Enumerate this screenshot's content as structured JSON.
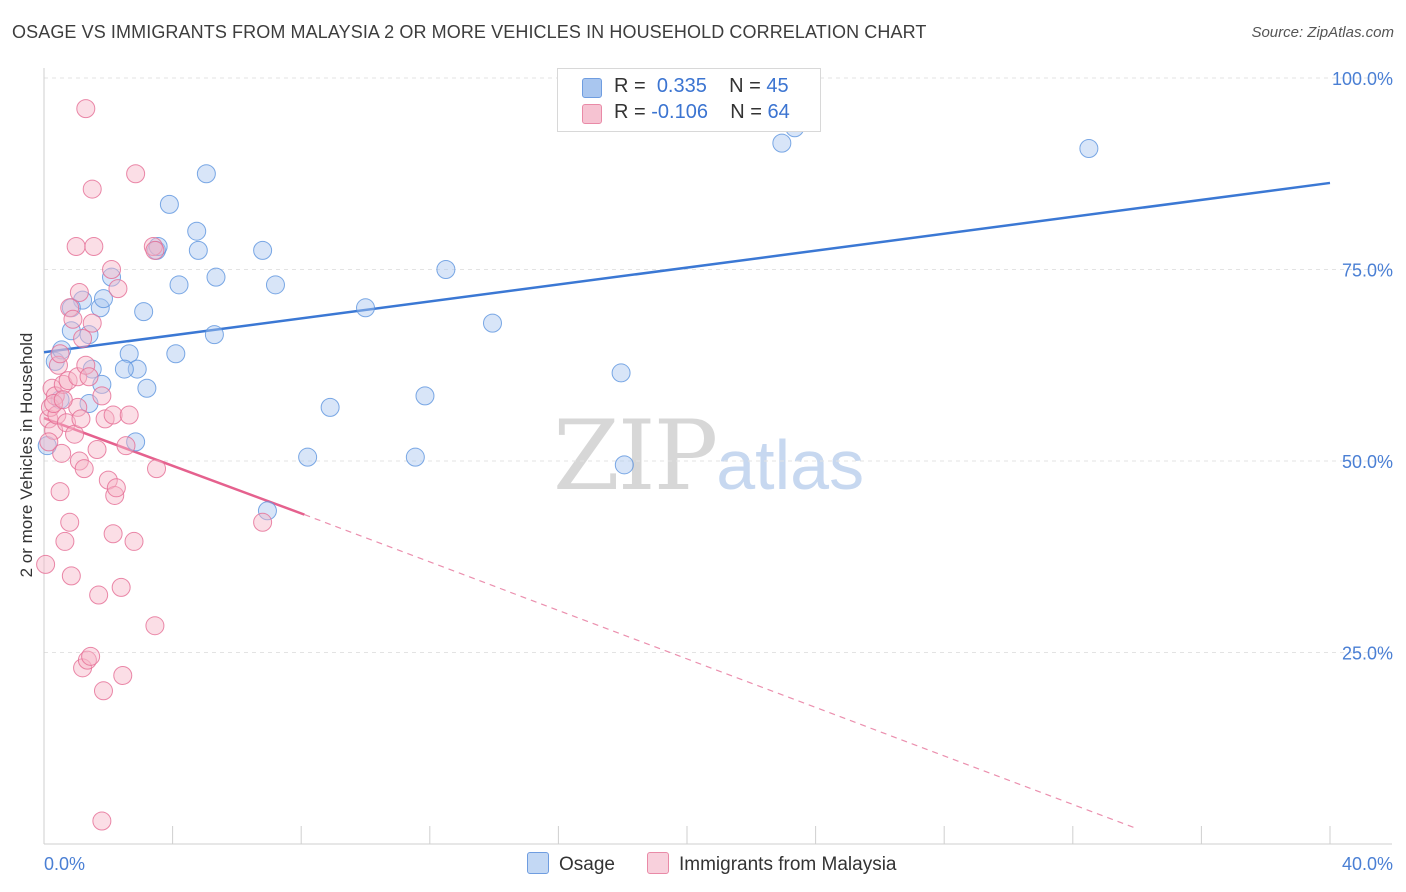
{
  "title": "OSAGE VS IMMIGRANTS FROM MALAYSIA 2 OR MORE VEHICLES IN HOUSEHOLD CORRELATION CHART",
  "source": "Source: ZipAtlas.com",
  "watermark": {
    "zip": "ZIP",
    "atlas": "atlas"
  },
  "legend_top": {
    "rows": [
      {
        "r_label": "R =",
        "r_value": "0.335",
        "n_label": "N =",
        "n_value": "45",
        "color": "#a9c6ef"
      },
      {
        "r_label": "R =",
        "r_value": "-0.106",
        "n_label": "N =",
        "n_value": "64",
        "color": "#f6b6c8"
      }
    ]
  },
  "legend_bottom": {
    "osage": "Osage",
    "malaysia": "Immigrants from Malaysia"
  },
  "chart_data": {
    "type": "scatter",
    "ylabel": "2 or more Vehicles in Household",
    "xlim": [
      0,
      40
    ],
    "ylim": [
      0,
      100
    ],
    "x_tick_labels": [
      "0.0%",
      "40.0%"
    ],
    "y_tick_labels": [
      "25.0%",
      "50.0%",
      "75.0%",
      "100.0%"
    ],
    "y_tick_values": [
      25,
      50,
      75,
      100
    ],
    "grid": true,
    "series": [
      {
        "name": "Osage",
        "color": "#5b93df",
        "fill": "#a9c6ef",
        "trend": {
          "x": [
            0,
            40
          ],
          "y": [
            64.2,
            86.3
          ],
          "dashed_from": null
        },
        "points": [
          [
            0.1,
            52.0
          ],
          [
            0.35,
            63.0
          ],
          [
            0.55,
            64.5
          ],
          [
            0.85,
            67.0
          ],
          [
            1.2,
            71.0
          ],
          [
            0.85,
            70.0
          ],
          [
            1.4,
            66.5
          ],
          [
            1.75,
            70.0
          ],
          [
            2.1,
            74.0
          ],
          [
            2.65,
            64.0
          ],
          [
            1.85,
            71.2
          ],
          [
            1.5,
            62.0
          ],
          [
            1.8,
            60.0
          ],
          [
            1.4,
            57.5
          ],
          [
            3.1,
            69.5
          ],
          [
            3.5,
            77.5
          ],
          [
            3.55,
            78.0
          ],
          [
            3.9,
            83.5
          ],
          [
            4.2,
            73.0
          ],
          [
            4.1,
            64.0
          ],
          [
            4.75,
            80.0
          ],
          [
            4.8,
            77.5
          ],
          [
            5.05,
            87.5
          ],
          [
            5.3,
            66.5
          ],
          [
            5.35,
            74.0
          ],
          [
            2.9,
            62.0
          ],
          [
            3.2,
            59.5
          ],
          [
            2.85,
            52.5
          ],
          [
            6.8,
            77.5
          ],
          [
            7.2,
            73.0
          ],
          [
            6.95,
            43.5
          ],
          [
            8.2,
            50.5
          ],
          [
            8.9,
            57.0
          ],
          [
            10.0,
            70.0
          ],
          [
            11.55,
            50.5
          ],
          [
            11.85,
            58.5
          ],
          [
            12.5,
            75.0
          ],
          [
            13.95,
            68.0
          ],
          [
            17.95,
            61.5
          ],
          [
            18.05,
            49.5
          ],
          [
            22.95,
            91.5
          ],
          [
            23.35,
            93.5
          ],
          [
            32.5,
            90.8
          ],
          [
            2.5,
            62.0
          ],
          [
            0.5,
            58.0
          ]
        ]
      },
      {
        "name": "Immigrants from Malaysia",
        "color": "#e56b93",
        "fill": "#f6b6c8",
        "trend": {
          "x": [
            0,
            8.1
          ],
          "y": [
            55.6,
            43.0
          ],
          "dashed_to": [
            34.0,
            2.0
          ]
        },
        "points": [
          [
            0.05,
            36.5
          ],
          [
            0.15,
            55.5
          ],
          [
            0.2,
            57.0
          ],
          [
            0.25,
            59.5
          ],
          [
            0.3,
            54.0
          ],
          [
            0.35,
            58.5
          ],
          [
            0.4,
            56.0
          ],
          [
            0.45,
            62.5
          ],
          [
            0.5,
            64.0
          ],
          [
            0.5,
            46.0
          ],
          [
            0.55,
            51.0
          ],
          [
            0.6,
            60.0
          ],
          [
            0.65,
            39.5
          ],
          [
            0.7,
            55.0
          ],
          [
            0.75,
            60.5
          ],
          [
            0.8,
            42.0
          ],
          [
            0.8,
            70.0
          ],
          [
            0.85,
            35.0
          ],
          [
            0.9,
            68.5
          ],
          [
            0.95,
            53.5
          ],
          [
            1.0,
            78.0
          ],
          [
            1.05,
            61.0
          ],
          [
            1.05,
            57.0
          ],
          [
            1.1,
            72.0
          ],
          [
            1.15,
            55.5
          ],
          [
            1.1,
            50.0
          ],
          [
            1.2,
            23.0
          ],
          [
            1.2,
            66.0
          ],
          [
            1.25,
            49.0
          ],
          [
            1.3,
            62.5
          ],
          [
            1.3,
            96.0
          ],
          [
            1.35,
            24.0
          ],
          [
            1.45,
            24.5
          ],
          [
            1.5,
            68.0
          ],
          [
            1.5,
            85.5
          ],
          [
            1.55,
            78.0
          ],
          [
            1.65,
            51.5
          ],
          [
            1.7,
            32.5
          ],
          [
            1.8,
            58.5
          ],
          [
            1.8,
            3.0
          ],
          [
            1.85,
            20.0
          ],
          [
            1.9,
            55.5
          ],
          [
            2.0,
            47.5
          ],
          [
            2.1,
            75.0
          ],
          [
            2.15,
            56.0
          ],
          [
            2.15,
            40.5
          ],
          [
            2.2,
            45.5
          ],
          [
            2.25,
            46.5
          ],
          [
            2.3,
            72.5
          ],
          [
            2.4,
            33.5
          ],
          [
            2.45,
            22.0
          ],
          [
            2.55,
            52.0
          ],
          [
            2.65,
            56.0
          ],
          [
            2.8,
            39.5
          ],
          [
            2.85,
            87.5
          ],
          [
            3.4,
            78.0
          ],
          [
            3.45,
            77.5
          ],
          [
            3.45,
            28.5
          ],
          [
            3.5,
            49.0
          ],
          [
            6.8,
            42.0
          ],
          [
            0.3,
            57.5
          ],
          [
            0.6,
            58.0
          ],
          [
            1.4,
            61.0
          ],
          [
            0.15,
            52.5
          ]
        ]
      }
    ]
  }
}
